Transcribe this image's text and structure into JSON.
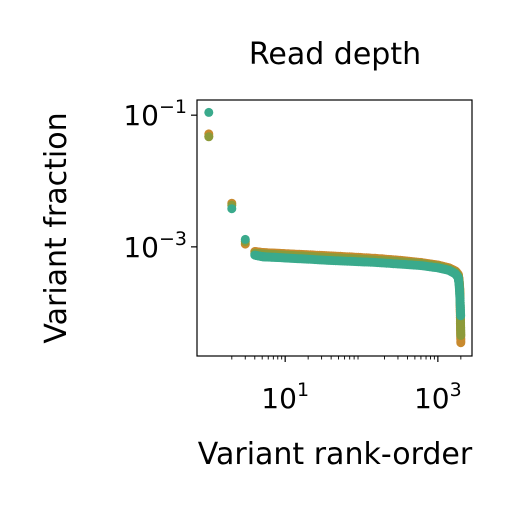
{
  "chart_data": {
    "type": "scatter",
    "title": "Read depth",
    "xlabel": "Variant rank-order",
    "ylabel": "Variant fraction",
    "xscale": "log",
    "yscale": "log",
    "xlim": [
      0.7,
      2800
    ],
    "ylim": [
      2.2e-05,
      0.17
    ],
    "x_ticks": [
      {
        "value": 10,
        "base": "10",
        "exp": "1"
      },
      {
        "value": 1000,
        "base": "10",
        "exp": "3"
      }
    ],
    "y_ticks": [
      {
        "value": 0.1,
        "base": "10",
        "exp": "−1"
      },
      {
        "value": 0.001,
        "base": "10",
        "exp": "−3"
      }
    ],
    "grid": false,
    "legend": "none",
    "colors": [
      "#c88a2e",
      "#8c9a3a",
      "#3aaa8c",
      "#9a6aa8"
    ],
    "series": [
      {
        "color": "#c88a2e",
        "x": [
          1,
          1,
          2,
          3,
          4,
          5,
          6,
          8,
          12,
          20,
          40,
          80,
          150,
          300,
          600,
          1000,
          1400,
          1700,
          1850,
          1900,
          1940,
          1960,
          1980,
          2000
        ],
        "y": [
          0.052,
          0.048,
          0.0046,
          0.0011,
          0.00085,
          0.00082,
          0.00081,
          0.0008,
          0.00078,
          0.00076,
          0.00073,
          0.0007,
          0.00067,
          0.00063,
          0.00058,
          0.00053,
          0.00048,
          0.00043,
          0.00038,
          0.00031,
          0.00022,
          0.00012,
          6e-05,
          3.5e-05
        ]
      },
      {
        "color": "#8c9a3a",
        "x": [
          1,
          2,
          3,
          4,
          5,
          6,
          8,
          12,
          20,
          40,
          80,
          150,
          300,
          600,
          1000,
          1400,
          1700,
          1850,
          1900,
          1950,
          1980,
          2000
        ],
        "y": [
          0.047,
          0.0043,
          0.0012,
          0.0008,
          0.00078,
          0.00077,
          0.00076,
          0.00074,
          0.00072,
          0.00069,
          0.00066,
          0.00063,
          0.0006,
          0.00056,
          0.00051,
          0.00046,
          0.00041,
          0.00036,
          0.00029,
          0.00018,
          8e-05,
          4.5e-05
        ]
      },
      {
        "color": "#3aaa8c",
        "x": [
          1,
          2,
          3,
          4,
          5,
          6,
          8,
          12,
          20,
          40,
          80,
          150,
          300,
          600,
          1000,
          1400,
          1700,
          1850,
          1900,
          1950,
          1990
        ],
        "y": [
          0.11,
          0.0038,
          0.0013,
          0.00075,
          0.00071,
          0.0007,
          0.00069,
          0.00067,
          0.00065,
          0.00062,
          0.0006,
          0.00058,
          0.00055,
          0.00052,
          0.00048,
          0.00044,
          0.00039,
          0.00034,
          0.00027,
          0.00016,
          9e-05
        ]
      }
    ]
  }
}
